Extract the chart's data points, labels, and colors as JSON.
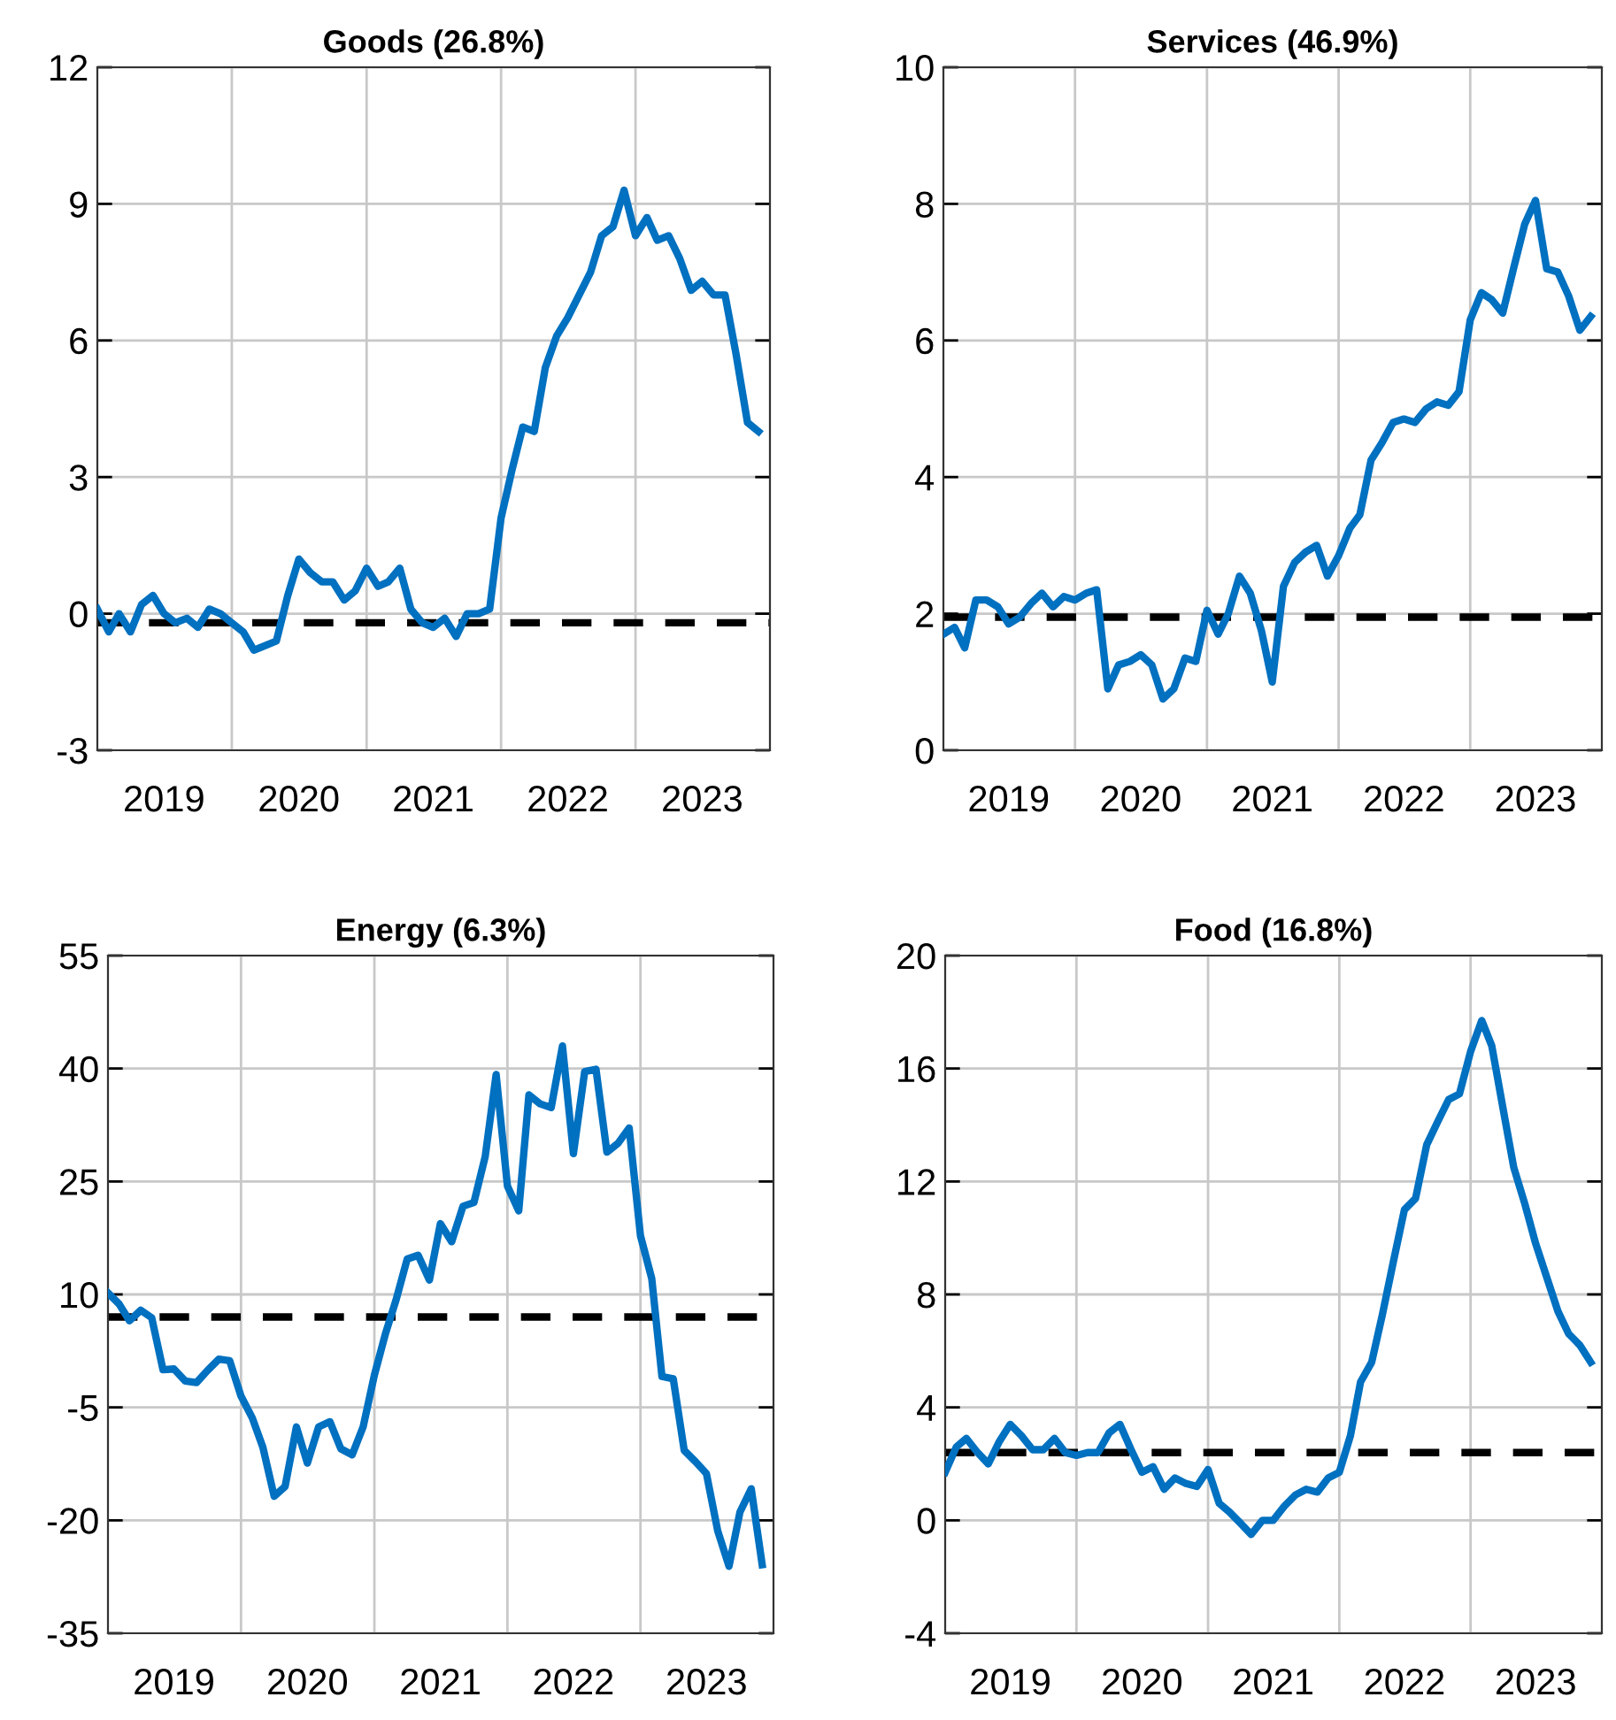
{
  "chart_data": [
    {
      "type": "line",
      "title": "Goods (26.8%)",
      "x": [
        "2019-01",
        "2019-02",
        "2019-03",
        "2019-04",
        "2019-05",
        "2019-06",
        "2019-07",
        "2019-08",
        "2019-09",
        "2019-10",
        "2019-11",
        "2019-12",
        "2020-01",
        "2020-02",
        "2020-03",
        "2020-04",
        "2020-05",
        "2020-06",
        "2020-07",
        "2020-08",
        "2020-09",
        "2020-10",
        "2020-11",
        "2020-12",
        "2021-01",
        "2021-02",
        "2021-03",
        "2021-04",
        "2021-05",
        "2021-06",
        "2021-07",
        "2021-08",
        "2021-09",
        "2021-10",
        "2021-11",
        "2021-12",
        "2022-01",
        "2022-02",
        "2022-03",
        "2022-04",
        "2022-05",
        "2022-06",
        "2022-07",
        "2022-08",
        "2022-09",
        "2022-10",
        "2022-11",
        "2022-12",
        "2023-01",
        "2023-02",
        "2023-03",
        "2023-04",
        "2023-05",
        "2023-06",
        "2023-07",
        "2023-08",
        "2023-09",
        "2023-10",
        "2023-11",
        "2023-12"
      ],
      "series": [
        {
          "color": "#0070c0",
          "values": [
            0.1,
            -0.4,
            0.0,
            -0.4,
            0.2,
            0.4,
            0.0,
            -0.2,
            -0.1,
            -0.3,
            0.1,
            0.0,
            -0.2,
            -0.4,
            -0.8,
            -0.7,
            -0.6,
            0.4,
            1.2,
            0.9,
            0.7,
            0.7,
            0.3,
            0.5,
            1.0,
            0.6,
            0.7,
            1.0,
            0.1,
            -0.2,
            -0.3,
            -0.1,
            -0.5,
            0.0,
            0.0,
            0.1,
            2.1,
            3.2,
            4.1,
            4.0,
            5.4,
            6.1,
            6.5,
            7.0,
            7.5,
            8.3,
            8.5,
            9.3,
            8.3,
            8.7,
            8.2,
            8.3,
            7.8,
            7.1,
            7.3,
            7.0,
            7.0,
            5.7,
            4.2,
            4.0
          ]
        }
      ],
      "ref_lines": [
        {
          "axis": "y",
          "value": -0.2,
          "color": "#000000",
          "line_style": "dashed"
        }
      ],
      "xlim": [
        "2019-01",
        "2024-01"
      ],
      "xticks": [
        {
          "value": "2019-07",
          "label": "2019"
        },
        {
          "value": "2020-01",
          "label": null
        },
        {
          "value": "2020-07",
          "label": "2020"
        },
        {
          "value": "2021-01",
          "label": null
        },
        {
          "value": "2021-07",
          "label": "2021"
        },
        {
          "value": "2022-01",
          "label": null
        },
        {
          "value": "2022-07",
          "label": "2022"
        },
        {
          "value": "2023-01",
          "label": null
        },
        {
          "value": "2023-07",
          "label": "2023"
        }
      ],
      "ylim": [
        -3,
        12
      ],
      "yticks": [
        -3,
        0,
        3,
        6,
        9,
        12
      ],
      "grid": true,
      "marker": "none",
      "line_style": "solid"
    },
    {
      "type": "line",
      "title": "Services (46.9%)",
      "x": [
        "2019-01",
        "2019-02",
        "2019-03",
        "2019-04",
        "2019-05",
        "2019-06",
        "2019-07",
        "2019-08",
        "2019-09",
        "2019-10",
        "2019-11",
        "2019-12",
        "2020-01",
        "2020-02",
        "2020-03",
        "2020-04",
        "2020-05",
        "2020-06",
        "2020-07",
        "2020-08",
        "2020-09",
        "2020-10",
        "2020-11",
        "2020-12",
        "2021-01",
        "2021-02",
        "2021-03",
        "2021-04",
        "2021-05",
        "2021-06",
        "2021-07",
        "2021-08",
        "2021-09",
        "2021-10",
        "2021-11",
        "2021-12",
        "2022-01",
        "2022-02",
        "2022-03",
        "2022-04",
        "2022-05",
        "2022-06",
        "2022-07",
        "2022-08",
        "2022-09",
        "2022-10",
        "2022-11",
        "2022-12",
        "2023-01",
        "2023-02",
        "2023-03",
        "2023-04",
        "2023-05",
        "2023-06",
        "2023-07",
        "2023-08",
        "2023-09",
        "2023-10",
        "2023-11",
        "2023-12"
      ],
      "series": [
        {
          "color": "#0070c0",
          "values": [
            1.7,
            1.8,
            1.5,
            2.2,
            2.2,
            2.1,
            1.85,
            1.95,
            2.15,
            2.3,
            2.1,
            2.25,
            2.2,
            2.3,
            2.35,
            0.9,
            1.25,
            1.3,
            1.4,
            1.25,
            0.75,
            0.9,
            1.35,
            1.3,
            2.05,
            1.7,
            2.0,
            2.55,
            2.3,
            1.75,
            1.0,
            2.4,
            2.75,
            2.9,
            3.0,
            2.55,
            2.85,
            3.25,
            3.45,
            4.25,
            4.5,
            4.8,
            4.85,
            4.8,
            5.0,
            5.1,
            5.05,
            5.25,
            6.3,
            6.7,
            6.6,
            6.4,
            7.05,
            7.7,
            8.05,
            7.05,
            7.0,
            6.65,
            6.15,
            6.35
          ]
        }
      ],
      "ref_lines": [
        {
          "axis": "y",
          "value": 1.95,
          "color": "#000000",
          "line_style": "dashed"
        }
      ],
      "xlim": [
        "2019-01",
        "2024-01"
      ],
      "xticks": [
        {
          "value": "2019-07",
          "label": "2019"
        },
        {
          "value": "2020-01",
          "label": null
        },
        {
          "value": "2020-07",
          "label": "2020"
        },
        {
          "value": "2021-01",
          "label": null
        },
        {
          "value": "2021-07",
          "label": "2021"
        },
        {
          "value": "2022-01",
          "label": null
        },
        {
          "value": "2022-07",
          "label": "2022"
        },
        {
          "value": "2023-01",
          "label": null
        },
        {
          "value": "2023-07",
          "label": "2023"
        }
      ],
      "ylim": [
        0,
        10
      ],
      "yticks": [
        0,
        2,
        4,
        6,
        8,
        10
      ],
      "grid": true,
      "marker": "none",
      "line_style": "solid"
    },
    {
      "type": "line",
      "title": "Energy (6.3%)",
      "x": [
        "2019-01",
        "2019-02",
        "2019-03",
        "2019-04",
        "2019-05",
        "2019-06",
        "2019-07",
        "2019-08",
        "2019-09",
        "2019-10",
        "2019-11",
        "2019-12",
        "2020-01",
        "2020-02",
        "2020-03",
        "2020-04",
        "2020-05",
        "2020-06",
        "2020-07",
        "2020-08",
        "2020-09",
        "2020-10",
        "2020-11",
        "2020-12",
        "2021-01",
        "2021-02",
        "2021-03",
        "2021-04",
        "2021-05",
        "2021-06",
        "2021-07",
        "2021-08",
        "2021-09",
        "2021-10",
        "2021-11",
        "2021-12",
        "2022-01",
        "2022-02",
        "2022-03",
        "2022-04",
        "2022-05",
        "2022-06",
        "2022-07",
        "2022-08",
        "2022-09",
        "2022-10",
        "2022-11",
        "2022-12",
        "2023-01",
        "2023-02",
        "2023-03",
        "2023-04",
        "2023-05",
        "2023-06",
        "2023-07",
        "2023-08",
        "2023-09",
        "2023-10",
        "2023-11",
        "2023-12"
      ],
      "series": [
        {
          "color": "#0070c0",
          "values": [
            10.2,
            8.7,
            6.5,
            7.9,
            6.9,
            0.0,
            0.1,
            -1.5,
            -1.7,
            -0.1,
            1.4,
            1.2,
            -3.5,
            -6.4,
            -10.3,
            -16.8,
            -15.5,
            -7.6,
            -12.4,
            -7.6,
            -6.9,
            -10.5,
            -11.3,
            -7.6,
            -0.7,
            4.9,
            9.2,
            14.7,
            15.2,
            11.9,
            19.4,
            17.0,
            21.7,
            22.2,
            28.3,
            39.2,
            24.4,
            21.1,
            36.5,
            35.3,
            34.8,
            43.0,
            28.7,
            39.6,
            39.9,
            28.9,
            30.1,
            32.1,
            17.8,
            12.1,
            -0.9,
            -1.2,
            -10.7,
            -12.2,
            -13.8,
            -21.4,
            -26.1,
            -18.9,
            -15.8,
            -25.9
          ]
        }
      ],
      "ref_lines": [
        {
          "axis": "y",
          "value": 7,
          "color": "#000000",
          "line_style": "dashed"
        }
      ],
      "xlim": [
        "2019-01",
        "2024-01"
      ],
      "xticks": [
        {
          "value": "2019-07",
          "label": "2019"
        },
        {
          "value": "2020-01",
          "label": null
        },
        {
          "value": "2020-07",
          "label": "2020"
        },
        {
          "value": "2021-01",
          "label": null
        },
        {
          "value": "2021-07",
          "label": "2021"
        },
        {
          "value": "2022-01",
          "label": null
        },
        {
          "value": "2022-07",
          "label": "2022"
        },
        {
          "value": "2023-01",
          "label": null
        },
        {
          "value": "2023-07",
          "label": "2023"
        }
      ],
      "ylim": [
        -35,
        55
      ],
      "yticks": [
        -35,
        -20,
        -5,
        10,
        25,
        40,
        55
      ],
      "grid": true,
      "marker": "none",
      "line_style": "solid"
    },
    {
      "type": "line",
      "title": "Food (16.8%)",
      "x": [
        "2019-01",
        "2019-02",
        "2019-03",
        "2019-04",
        "2019-05",
        "2019-06",
        "2019-07",
        "2019-08",
        "2019-09",
        "2019-10",
        "2019-11",
        "2019-12",
        "2020-01",
        "2020-02",
        "2020-03",
        "2020-04",
        "2020-05",
        "2020-06",
        "2020-07",
        "2020-08",
        "2020-09",
        "2020-10",
        "2020-11",
        "2020-12",
        "2021-01",
        "2021-02",
        "2021-03",
        "2021-04",
        "2021-05",
        "2021-06",
        "2021-07",
        "2021-08",
        "2021-09",
        "2021-10",
        "2021-11",
        "2021-12",
        "2022-01",
        "2022-02",
        "2022-03",
        "2022-04",
        "2022-05",
        "2022-06",
        "2022-07",
        "2022-08",
        "2022-09",
        "2022-10",
        "2022-11",
        "2022-12",
        "2023-01",
        "2023-02",
        "2023-03",
        "2023-04",
        "2023-05",
        "2023-06",
        "2023-07",
        "2023-08",
        "2023-09",
        "2023-10",
        "2023-11",
        "2023-12"
      ],
      "series": [
        {
          "color": "#0070c0",
          "values": [
            1.7,
            2.6,
            2.9,
            2.4,
            2.0,
            2.8,
            3.4,
            3.0,
            2.5,
            2.5,
            2.9,
            2.4,
            2.3,
            2.4,
            2.4,
            3.1,
            3.4,
            2.5,
            1.7,
            1.9,
            1.1,
            1.5,
            1.3,
            1.2,
            1.8,
            0.6,
            0.3,
            -0.1,
            -0.5,
            0.0,
            0.0,
            0.5,
            0.9,
            1.1,
            1.0,
            1.5,
            1.7,
            3.0,
            4.9,
            5.6,
            7.3,
            9.2,
            11.0,
            11.4,
            13.3,
            14.1,
            14.9,
            15.1,
            16.6,
            17.7,
            16.8,
            14.6,
            12.5,
            11.2,
            9.8,
            8.6,
            7.4,
            6.6,
            6.2,
            5.6
          ]
        }
      ],
      "ref_lines": [
        {
          "axis": "y",
          "value": 2.4,
          "color": "#000000",
          "line_style": "dashed"
        }
      ],
      "xlim": [
        "2019-01",
        "2024-01"
      ],
      "xticks": [
        {
          "value": "2019-07",
          "label": "2019"
        },
        {
          "value": "2020-01",
          "label": null
        },
        {
          "value": "2020-07",
          "label": "2020"
        },
        {
          "value": "2021-01",
          "label": null
        },
        {
          "value": "2021-07",
          "label": "2021"
        },
        {
          "value": "2022-01",
          "label": null
        },
        {
          "value": "2022-07",
          "label": "2022"
        },
        {
          "value": "2023-01",
          "label": null
        },
        {
          "value": "2023-07",
          "label": "2023"
        }
      ],
      "ylim": [
        -4,
        20
      ],
      "yticks": [
        -4,
        0,
        4,
        8,
        12,
        16,
        20
      ],
      "grid": true,
      "marker": "none",
      "line_style": "solid"
    }
  ]
}
